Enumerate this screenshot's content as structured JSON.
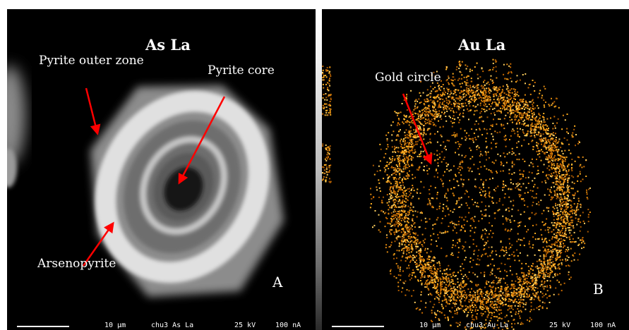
{
  "panel_a": {
    "title": "As La",
    "labels": {
      "outer_zone": "Pyrite outer zone",
      "core": "Pyrite core",
      "arsenopyrite": "Arsenopyrite"
    },
    "corner": "A",
    "footer": {
      "scale": "10 µm",
      "sample": "chu3 As La",
      "voltage": "25 kV",
      "current": "100 nA"
    }
  },
  "panel_b": {
    "title": "Au La",
    "labels": {
      "gold_circle": "Gold circle"
    },
    "corner": "B",
    "footer": {
      "scale": "10 µm",
      "sample": "chu3 Au La",
      "voltage": "25 kV",
      "current": "100 nA"
    }
  },
  "colors": {
    "arrow": "#ff0000",
    "gold": "#e8a020",
    "text": "#ffffff",
    "background": "#000000"
  }
}
